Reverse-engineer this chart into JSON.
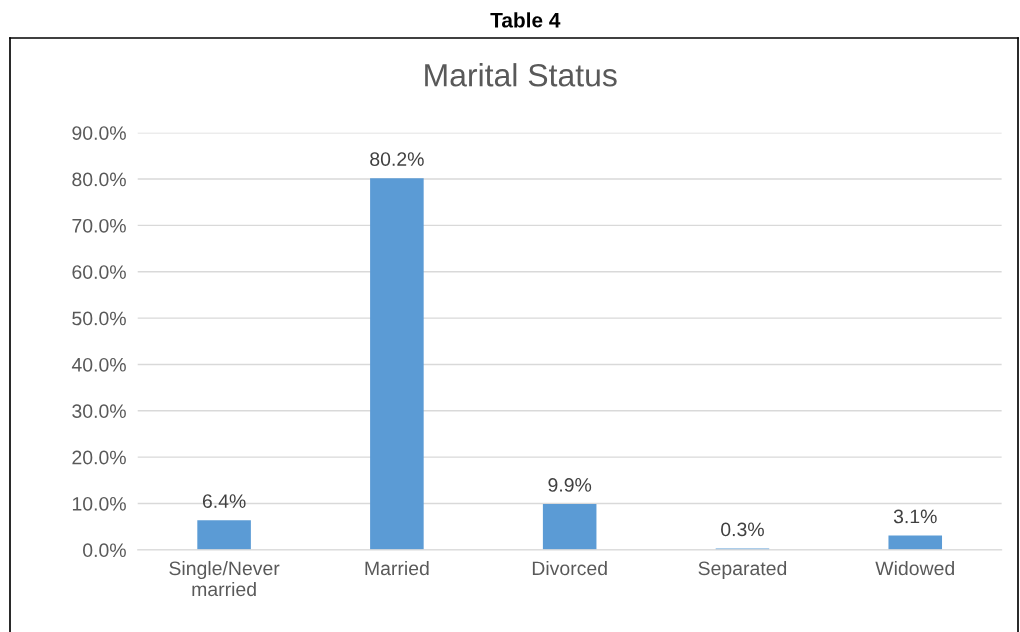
{
  "chart_data": {
    "type": "bar",
    "title": "Table 4",
    "subtitle": "Marital Status",
    "categories": [
      "Single/Never\nmarried",
      "Married",
      "Divorced",
      "Separated",
      "Widowed"
    ],
    "values": [
      6.4,
      80.2,
      9.9,
      0.3,
      3.1
    ],
    "value_labels": [
      "6.4%",
      "80.2%",
      "9.9%",
      "0.3%",
      "3.1%"
    ],
    "color": "#5b9bd5",
    "ylim": [
      0,
      90
    ],
    "yticks": [
      {
        "value": 0,
        "label": "0.0%"
      },
      {
        "value": 10,
        "label": "10.0%"
      },
      {
        "value": 20,
        "label": "20.0%"
      },
      {
        "value": 30,
        "label": "30.0%"
      },
      {
        "value": 40,
        "label": "40.0%"
      },
      {
        "value": 50,
        "label": "50.0%"
      },
      {
        "value": 60,
        "label": "60.0%"
      },
      {
        "value": 70,
        "label": "70.0%"
      },
      {
        "value": 80,
        "label": "80.0%"
      },
      {
        "value": 90,
        "label": "90.0%"
      }
    ],
    "grid": "y",
    "legend": false
  }
}
